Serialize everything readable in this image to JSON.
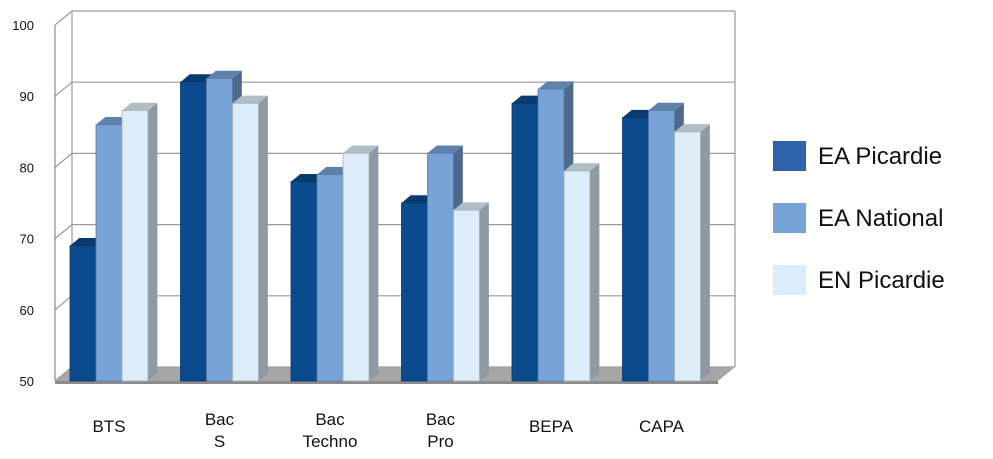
{
  "chart_data": {
    "type": "bar",
    "title": "",
    "xlabel": "",
    "ylabel": "",
    "ylim": [
      50,
      100
    ],
    "yticks": [
      50,
      60,
      70,
      80,
      90,
      100
    ],
    "grid": true,
    "legend_position": "right",
    "categories": [
      [
        "BTS"
      ],
      [
        "Bac",
        "S"
      ],
      [
        "Bac",
        "Techno"
      ],
      [
        "Bac",
        "Pro"
      ],
      [
        "BEPA"
      ],
      [
        "CAPA"
      ]
    ],
    "series": [
      {
        "name": "EA Picardie",
        "color": "#0b4a8c",
        "values": [
          69,
          92,
          78,
          75,
          89,
          87
        ]
      },
      {
        "name": "EA National",
        "color": "#77a3d7",
        "values": [
          86,
          92.5,
          79,
          82,
          91,
          88
        ]
      },
      {
        "name": "EN Picardie",
        "color": "#dcecf8",
        "values": [
          88,
          89,
          82,
          74,
          79.5,
          85
        ]
      }
    ]
  }
}
